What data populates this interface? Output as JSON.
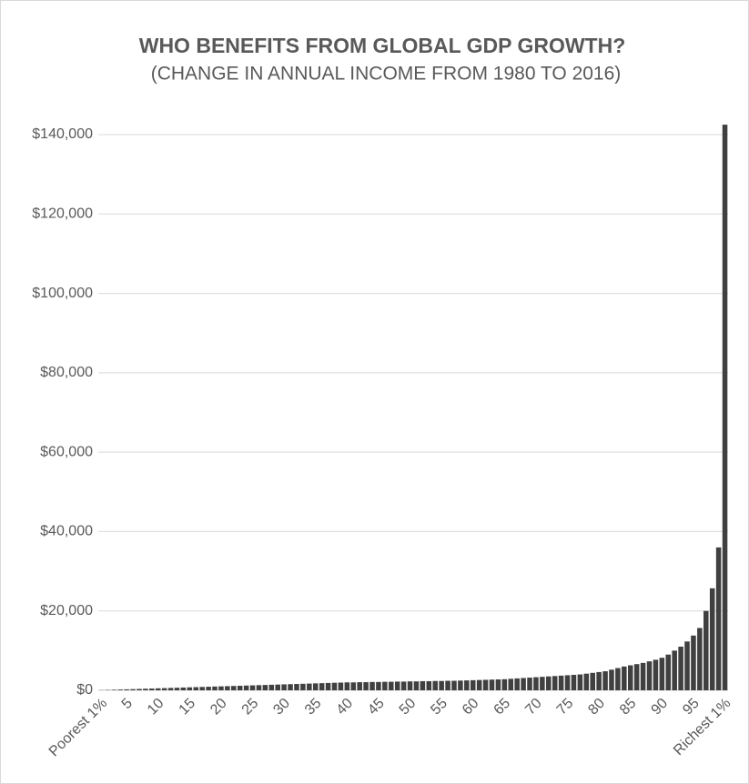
{
  "chart_data": {
    "type": "bar",
    "title": "WHO BENEFITS FROM GLOBAL GDP GROWTH?",
    "subtitle": "(CHANGE IN ANNUAL INCOME FROM 1980 TO 2016)",
    "categories": [
      "Poorest 1%",
      null,
      null,
      null,
      "5",
      null,
      null,
      null,
      null,
      "10",
      null,
      null,
      null,
      null,
      "15",
      null,
      null,
      null,
      null,
      "20",
      null,
      null,
      null,
      null,
      "25",
      null,
      null,
      null,
      null,
      "30",
      null,
      null,
      null,
      null,
      "35",
      null,
      null,
      null,
      null,
      "40",
      null,
      null,
      null,
      null,
      "45",
      null,
      null,
      null,
      null,
      "50",
      null,
      null,
      null,
      null,
      "55",
      null,
      null,
      null,
      null,
      "60",
      null,
      null,
      null,
      null,
      "65",
      null,
      null,
      null,
      null,
      "70",
      null,
      null,
      null,
      null,
      "75",
      null,
      null,
      null,
      null,
      "80",
      null,
      null,
      null,
      null,
      "85",
      null,
      null,
      null,
      null,
      "90",
      null,
      null,
      null,
      null,
      "95",
      null,
      null,
      null,
      null,
      "Richest 1%"
    ],
    "values": [
      50,
      100,
      150,
      200,
      250,
      300,
      350,
      400,
      450,
      500,
      550,
      600,
      650,
      700,
      750,
      800,
      850,
      900,
      950,
      1000,
      1050,
      1100,
      1150,
      1200,
      1250,
      1300,
      1350,
      1400,
      1450,
      1500,
      1550,
      1600,
      1650,
      1700,
      1750,
      1800,
      1850,
      1900,
      1950,
      2000,
      2000,
      2050,
      2050,
      2100,
      2100,
      2150,
      2150,
      2200,
      2200,
      2250,
      2250,
      2300,
      2300,
      2350,
      2350,
      2400,
      2400,
      2450,
      2500,
      2550,
      2600,
      2650,
      2700,
      2750,
      2800,
      2900,
      3000,
      3100,
      3200,
      3300,
      3400,
      3500,
      3600,
      3700,
      3800,
      3900,
      4000,
      4200,
      4400,
      4600,
      4800,
      5200,
      5600,
      6000,
      6300,
      6600,
      6900,
      7300,
      7700,
      8200,
      9000,
      10000,
      11000,
      12300,
      13800,
      15700,
      20000,
      25700,
      36000,
      142500
    ],
    "color": "#404040",
    "ylim": [
      0,
      140000
    ],
    "yticks": [
      {
        "value": 0,
        "label": "$0"
      },
      {
        "value": 20000,
        "label": "$20,000"
      },
      {
        "value": 40000,
        "label": "$40,000"
      },
      {
        "value": 60000,
        "label": "$60,000"
      },
      {
        "value": 80000,
        "label": "$80,000"
      },
      {
        "value": 100000,
        "label": "$100,000"
      },
      {
        "value": 120000,
        "label": "$120,000"
      },
      {
        "value": 140000,
        "label": "$140,000"
      }
    ],
    "grid": true
  }
}
